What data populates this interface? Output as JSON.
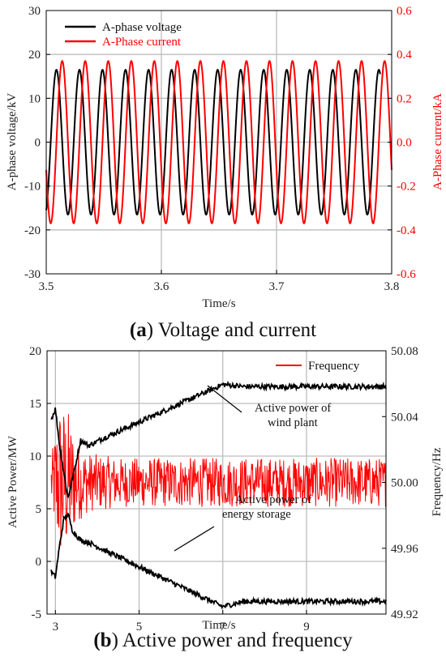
{
  "chart_data": [
    {
      "type": "line",
      "caption_letter": "a",
      "caption_text": " Voltage and current",
      "xlabel": "Time/s",
      "ylabel": "A-phase voltage/kV",
      "y2label": "A-Phase current/kA",
      "xlim": [
        3.5,
        3.8
      ],
      "ylim": [
        -30,
        30
      ],
      "y2lim": [
        -0.6,
        0.6
      ],
      "xticks": [
        "3.5",
        "3.6",
        "3.7",
        "3.8"
      ],
      "yticks": [
        "-30",
        "-20",
        "-10",
        "0",
        "10",
        "20",
        "30"
      ],
      "y2ticks": [
        "-0.6",
        "-0.4",
        "-0.2",
        "0.0",
        "0.2",
        "0.4",
        "0.6"
      ],
      "grid": true,
      "legend_position": "top-left",
      "series": [
        {
          "name": "A-phase voltage",
          "color": "#000000",
          "axis": "left",
          "amplitude": 16.5,
          "frequency_hz": 50,
          "phase_deg": 290,
          "x_range": [
            3.5,
            3.79
          ]
        },
        {
          "name": "A-Phase current",
          "color": "#ff0000",
          "axis": "right",
          "amplitude": 0.37,
          "frequency_hz": 50,
          "phase_deg": 200,
          "x_range": [
            3.5,
            3.8
          ]
        }
      ]
    },
    {
      "type": "line",
      "caption_letter": "b",
      "caption_text": " Active power and frequency",
      "xlabel": "Time/s",
      "ylabel": "Active Power/MW",
      "y2label": "Frequency/Hz",
      "xlim": [
        2.8,
        10.9
      ],
      "ylim": [
        -5,
        20
      ],
      "y2lim": [
        49.92,
        50.08
      ],
      "xticks": [
        "3",
        "5",
        "7",
        "9"
      ],
      "yticks": [
        "-5",
        "0",
        "5",
        "10",
        "15",
        "20"
      ],
      "y2ticks": [
        "49.92",
        "49.96",
        "50.00",
        "50.04",
        "50.08"
      ],
      "grid": true,
      "legend_position": "top-right",
      "series": [
        {
          "name": "Frequency",
          "color": "#ff0000",
          "axis": "right",
          "x": [
            2.9,
            3.1,
            3.3,
            3.5,
            3.8,
            4.5,
            7.0,
            10.9
          ],
          "y": [
            50.0,
            50.0,
            50.0,
            50.0,
            50.0,
            50.0,
            50.0,
            50.0
          ],
          "noise": [
            0.015,
            0.05,
            0.045,
            0.025,
            0.018,
            0.015,
            0.015,
            0.015
          ]
        },
        {
          "name": "",
          "color": "#000000",
          "axis": "left",
          "x": [
            2.9,
            3.0,
            3.1,
            3.3,
            3.5,
            3.6,
            3.8,
            4.2,
            7.0,
            7.5,
            10.9
          ],
          "y": [
            13.5,
            14.5,
            11.0,
            6.0,
            9.5,
            11.5,
            11.0,
            11.8,
            16.8,
            16.6,
            16.6
          ]
        },
        {
          "name": "",
          "color": "#000000",
          "axis": "left",
          "x": [
            2.9,
            3.0,
            3.1,
            3.2,
            3.3,
            3.4,
            3.6,
            3.8,
            4.2,
            7.0,
            7.5,
            10.9
          ],
          "y": [
            -1.0,
            -1.5,
            1.5,
            4.0,
            4.5,
            3.0,
            2.0,
            1.8,
            1.0,
            -4.3,
            -3.8,
            -3.8
          ]
        }
      ],
      "annotations": [
        {
          "lines": [
            "Active power of",
            "wind plant"
          ],
          "target": [
            6.8,
            16.5
          ]
        },
        {
          "lines": [
            "Active power of",
            "energy storage"
          ],
          "target": [
            5.5,
            -2.5
          ]
        }
      ]
    }
  ]
}
